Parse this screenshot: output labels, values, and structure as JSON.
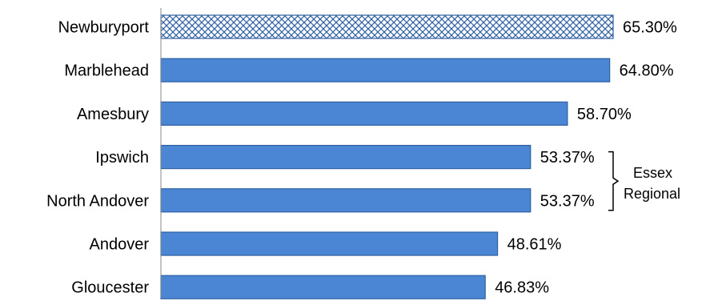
{
  "chart_data": {
    "type": "bar",
    "orientation": "horizontal",
    "categories": [
      "Newburyport",
      "Marblehead",
      "Amesbury",
      "Ipswich",
      "North Andover",
      "Andover",
      "Gloucester"
    ],
    "values": [
      65.3,
      64.8,
      58.7,
      53.37,
      53.37,
      48.61,
      46.83
    ],
    "value_labels": [
      "65.30%",
      "64.80%",
      "58.70%",
      "53.37%",
      "53.37%",
      "48.61%",
      "46.83%"
    ],
    "xlim": [
      0,
      70
    ],
    "title": "",
    "xlabel": "",
    "ylabel": "",
    "grid": false,
    "highlighted_category": "Newburyport",
    "annotation": {
      "lines": [
        "Essex",
        "Regional"
      ],
      "groups_categories": [
        "Ipswich",
        "North Andover"
      ]
    },
    "colors": {
      "bar_fill": "#4a86d4",
      "bar_stroke": "#2e5fa3",
      "highlight_pattern": "#2e5fa3",
      "axis": "#8a8a8a"
    }
  }
}
